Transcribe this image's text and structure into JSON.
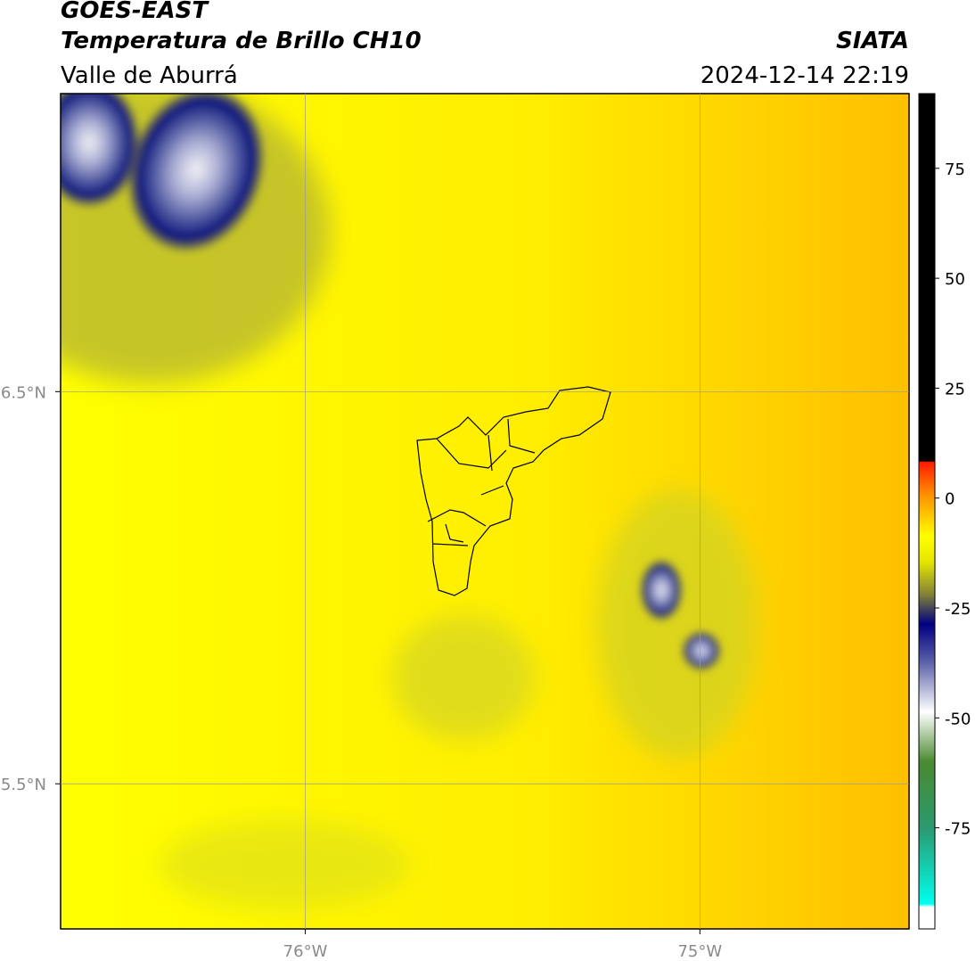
{
  "header": {
    "title": "GOES-EAST",
    "subtitle": "Temperatura de Brillo CH10",
    "region": "Valle de Aburrá",
    "source": "SIATA",
    "timestamp": "2024-12-14 22:19"
  },
  "map": {
    "xlim": [
      -76.62,
      -74.47
    ],
    "ylim": [
      5.13,
      7.26
    ],
    "xticks": [
      {
        "value": -76,
        "label": "76°W"
      },
      {
        "value": -75,
        "label": "75°W"
      }
    ],
    "yticks": [
      {
        "value": 6.5,
        "label": "6.5°N"
      },
      {
        "value": 5.5,
        "label": "5.5°N"
      }
    ],
    "grid": true
  },
  "colorbar": {
    "range": [
      -98,
      92
    ],
    "ticks": [
      75,
      50,
      25,
      0,
      -25,
      -50,
      -75
    ]
  }
}
